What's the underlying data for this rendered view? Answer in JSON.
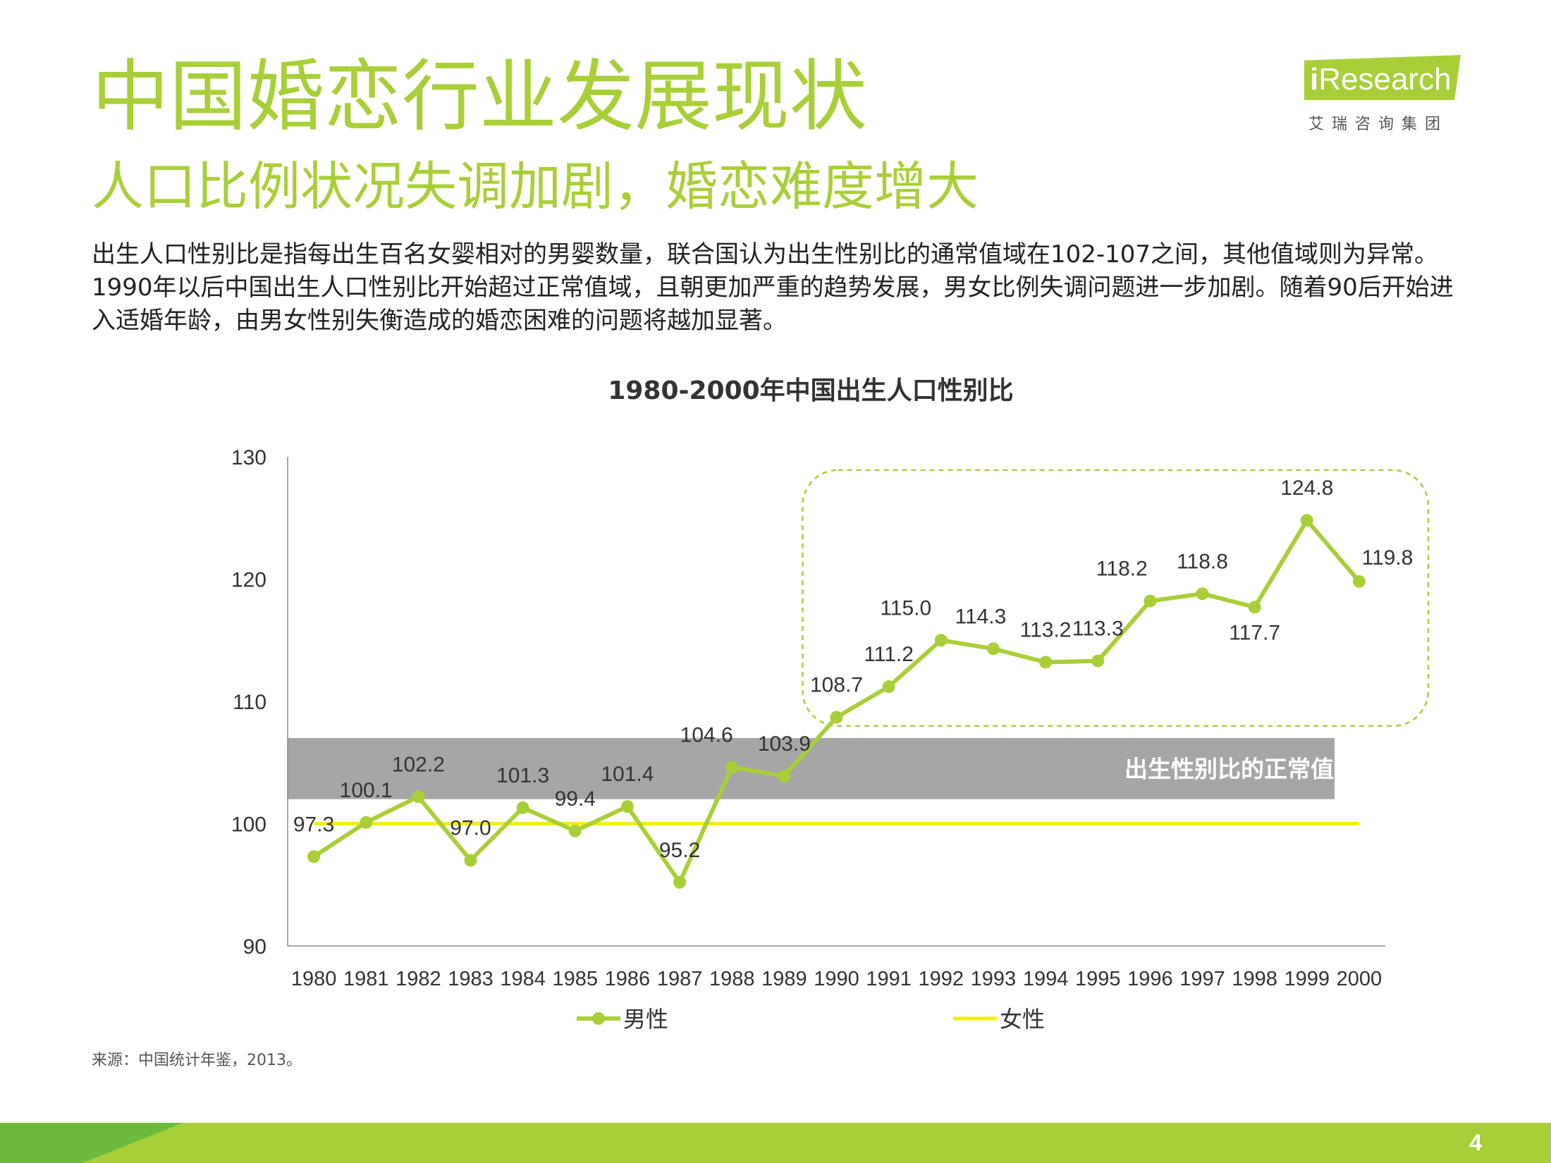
{
  "header": {
    "title": "中国婚恋行业发展现状",
    "subtitle": "人口比例状况失调加剧，婚恋难度增大",
    "description": "出生人口性别比是指每出生百名女婴相对的男婴数量，联合国认为出生性别比的通常值域在102-107之间，其他值域则为异常。1990年以后中国出生人口性别比开始超过正常值域，且朝更加严重的趋势发展，男女比例失调问题进一步加剧。随着90后开始进入适婚年龄，由男女性别失衡造成的婚恋困难的问题将越加显著。"
  },
  "logo": {
    "mark": "i",
    "name": "Research",
    "cn_name": "艾瑞咨询集团"
  },
  "chart_data": {
    "type": "line",
    "title": "1980-2000年中国出生人口性别比",
    "categories": [
      "1980",
      "1981",
      "1982",
      "1983",
      "1984",
      "1985",
      "1986",
      "1987",
      "1988",
      "1989",
      "1990",
      "1991",
      "1992",
      "1993",
      "1994",
      "1995",
      "1996",
      "1997",
      "1998",
      "1999",
      "2000"
    ],
    "series": [
      {
        "name": "男性",
        "values": [
          97.3,
          100.1,
          102.2,
          97.0,
          101.3,
          99.4,
          101.4,
          95.2,
          104.6,
          103.9,
          108.7,
          111.2,
          115.0,
          114.3,
          113.2,
          113.3,
          118.2,
          118.8,
          117.7,
          124.8,
          119.8
        ],
        "color": "#a9cf38",
        "markers": true
      },
      {
        "name": "女性",
        "values": [
          100,
          100,
          100,
          100,
          100,
          100,
          100,
          100,
          100,
          100,
          100,
          100,
          100,
          100,
          100,
          100,
          100,
          100,
          100,
          100,
          100
        ],
        "color": "#f0f000",
        "markers": false
      }
    ],
    "ylim": [
      90,
      130
    ],
    "yticks": [
      90,
      100,
      110,
      120,
      130
    ],
    "normal_band": {
      "range": [
        102,
        107
      ],
      "label": "出生性别比的正常值域",
      "color": "#a6a6a6"
    },
    "highlight_region": {
      "from": "1990",
      "to": "2000"
    },
    "legend_position": "bottom",
    "xlabel": "",
    "ylabel": ""
  },
  "source": "来源：中国统计年鉴，2013。",
  "page_number": "4"
}
